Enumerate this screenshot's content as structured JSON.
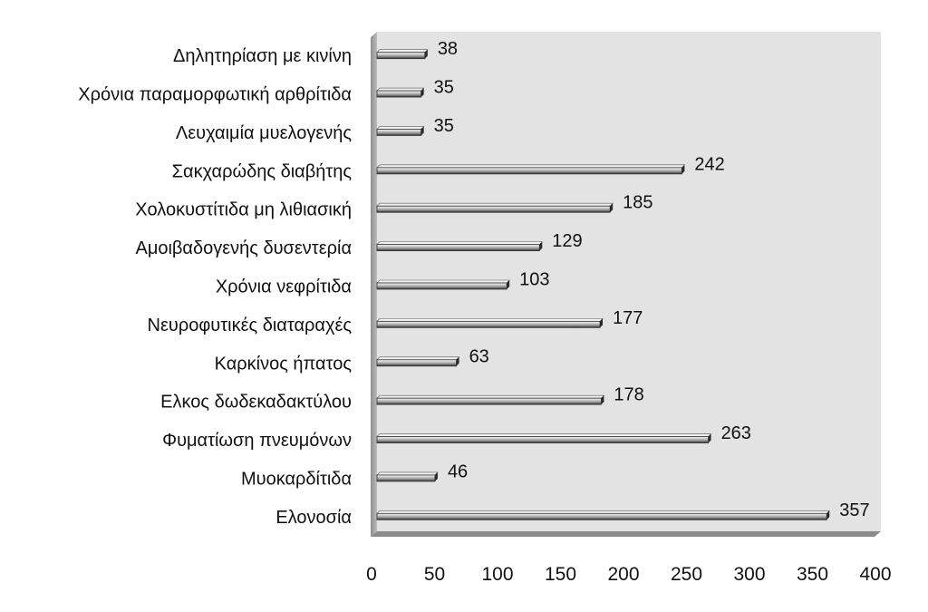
{
  "chart_data": {
    "type": "bar",
    "orientation": "horizontal",
    "categories": [
      "Δηλητηρίαση με κινίνη",
      "Χρόνια παραμορφωτική αρθρίτιδα",
      "Λευχαιμία μυελογενής",
      "Σακχαρώδης διαβήτης",
      "Χολοκυστίτιδα μη λιθιασική",
      "Αμοιβαδογενής δυσεντερία",
      "Χρόνια νεφρίτιδα",
      "Νευροφυτικές διαταραχές",
      "Καρκίνος ήπατος",
      "Ελκος δωδεκαδακτύλου",
      "Φυματίωση πνευμόνων",
      "Μυοκαρδίτιδα",
      "Ελονοσία"
    ],
    "values": [
      38,
      35,
      35,
      242,
      185,
      129,
      103,
      177,
      63,
      178,
      263,
      46,
      357
    ],
    "xlim": [
      0,
      400
    ],
    "xticks": [
      "0",
      "50",
      "100",
      "150",
      "200",
      "250",
      "300",
      "350",
      "400"
    ],
    "title": "",
    "xlabel": "",
    "ylabel": "",
    "grid": false,
    "legend": "none",
    "colors": {
      "plot_background": "#e3e3e3",
      "plot_side_wall": "#a9a9a9",
      "plot_floor": "#8a8a8a",
      "bar_light": "#f2f2f2",
      "bar_mid": "#9a9a9a",
      "bar_dark": "#2a2a2a",
      "text": "#111111"
    }
  }
}
